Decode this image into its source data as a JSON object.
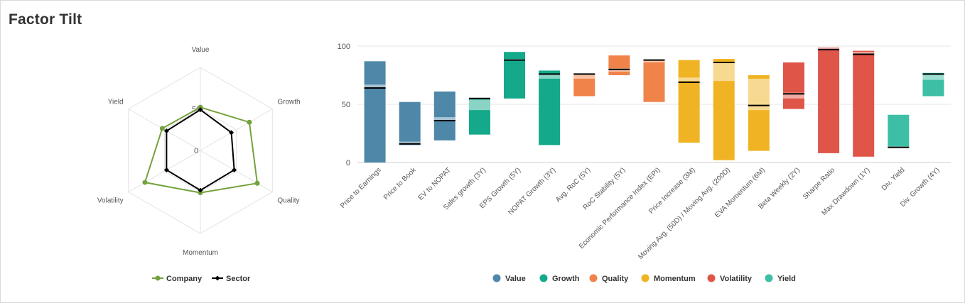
{
  "title": "Factor Tilt",
  "chart_data": [
    {
      "type": "radar",
      "axes": [
        "Value",
        "Growth",
        "Quality",
        "Momentum",
        "Volatility",
        "Yield"
      ],
      "rlabels": [
        "50",
        "0"
      ],
      "rlim": [
        0,
        100
      ],
      "series": [
        {
          "name": "Company",
          "color": "#73a23c",
          "values": [
            52,
            68,
            79,
            51,
            77,
            53
          ]
        },
        {
          "name": "Sector",
          "color": "#000000",
          "values": [
            49,
            43,
            47,
            48,
            47,
            47
          ]
        }
      ],
      "legend": "bottom"
    },
    {
      "type": "floating-bar",
      "yticks": [
        0,
        50,
        100
      ],
      "ylim": [
        0,
        100
      ],
      "legend": "bottom",
      "categories": [
        "Price to Earnings",
        "Price to Book",
        "EV to NOPAT",
        "Sales growth (3Y)",
        "EPS Growth (5Y)",
        "NOPAT Growth (3Y)",
        "Avg. RoC (5Y)",
        "RoC Stability (5Y)",
        "Economic Performance Index (EPI)",
        "Price Increase (3M)",
        "Moving Avg. (50D) / Moving Avg. (200D)",
        "EVA Momentum (6M)",
        "Beta Weekly (2Y)",
        "Sharpe Ratio",
        "Max Drawdown (1Y)",
        "Div. Yield",
        "Div. Growth (4Y)"
      ],
      "groups": [
        {
          "name": "Value",
          "color": "#4e87a8"
        },
        {
          "name": "Growth",
          "color": "#13a98a"
        },
        {
          "name": "Quality",
          "color": "#ef8349"
        },
        {
          "name": "Momentum",
          "color": "#f0b323"
        },
        {
          "name": "Volatility",
          "color": "#df5548"
        },
        {
          "name": "Yield",
          "color": "#3dbfa5"
        }
      ],
      "bars": [
        {
          "group": "Value",
          "low": 0,
          "high": 87,
          "band": [
            64,
            67
          ],
          "marker": 64
        },
        {
          "group": "Value",
          "low": 15,
          "high": 52,
          "band": [
            16,
            18
          ],
          "marker": 16
        },
        {
          "group": "Value",
          "low": 19,
          "high": 61,
          "band": [
            36,
            39
          ],
          "marker": 36
        },
        {
          "group": "Growth",
          "low": 24,
          "high": 55,
          "band": [
            45,
            54
          ],
          "marker": 55
        },
        {
          "group": "Growth",
          "low": 55,
          "high": 95,
          "band": [
            88,
            89
          ],
          "marker": 88
        },
        {
          "group": "Growth",
          "low": 15,
          "high": 79,
          "band": [
            72,
            76
          ],
          "marker": 76
        },
        {
          "group": "Quality",
          "low": 57,
          "high": 76,
          "band": [
            72,
            76
          ],
          "marker": 76
        },
        {
          "group": "Quality",
          "low": 75,
          "high": 92,
          "band": [
            78,
            81
          ],
          "marker": 80
        },
        {
          "group": "Quality",
          "low": 52,
          "high": 88,
          "band": [
            86,
            88
          ],
          "marker": 88
        },
        {
          "group": "Momentum",
          "low": 17,
          "high": 88,
          "band": [
            70,
            73
          ],
          "marker": 69
        },
        {
          "group": "Momentum",
          "low": 2,
          "high": 89,
          "band": [
            70,
            86
          ],
          "marker": 86
        },
        {
          "group": "Momentum",
          "low": 10,
          "high": 75,
          "band": [
            45,
            72
          ],
          "marker": 49
        },
        {
          "group": "Volatility",
          "low": 46,
          "high": 86,
          "band": [
            55,
            60
          ],
          "marker": 59
        },
        {
          "group": "Volatility",
          "low": 8,
          "high": 99,
          "band": [
            97,
            99
          ],
          "marker": 97
        },
        {
          "group": "Volatility",
          "low": 5,
          "high": 96,
          "band": [
            93,
            95
          ],
          "marker": 93
        },
        {
          "group": "Yield",
          "low": 13,
          "high": 41,
          "band": [
            13,
            14
          ],
          "marker": 13
        },
        {
          "group": "Yield",
          "low": 57,
          "high": 77,
          "band": [
            71,
            76
          ],
          "marker": 76
        }
      ]
    }
  ]
}
